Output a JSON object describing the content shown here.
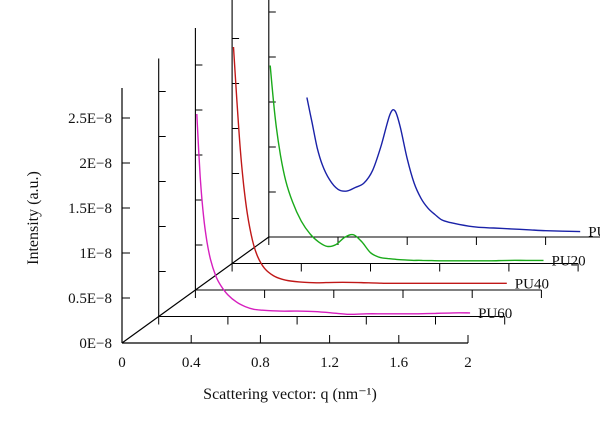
{
  "chart_data": {
    "type": "line",
    "xlabel": "Scattering vector: q (nm⁻¹)",
    "ylabel": "Intensity (a.u.)",
    "x_ticks": [
      "0",
      "0.4",
      "0.8",
      "1.2",
      "1.6",
      "2"
    ],
    "x_tick_values": [
      0,
      0.4,
      0.8,
      1.2,
      1.6,
      2
    ],
    "y_ticks": [
      "0E−8",
      "0.5E−8",
      "1E−8",
      "1.5E−8",
      "2E−8",
      "2.5E−8"
    ],
    "y_tick_values": [
      0,
      0.5,
      1,
      1.5,
      2,
      2.5
    ],
    "xlim": [
      0,
      2
    ],
    "ylim": [
      0,
      2.5
    ],
    "grid": false,
    "legend": "labels at right end of each series",
    "layout": "3D waterfall, each series offset along a depth axis",
    "series": [
      {
        "name": "PU60",
        "color": "#d61fbe",
        "q": [
          0.22,
          0.24,
          0.26,
          0.28,
          0.3,
          0.33,
          0.36,
          0.4,
          0.45,
          0.5,
          0.55,
          0.6,
          0.7,
          0.8,
          0.9,
          1.0,
          1.1,
          1.2,
          1.3,
          1.4,
          1.5,
          1.6,
          1.7,
          1.8
        ],
        "intensity": [
          2.25,
          1.55,
          1.1,
          0.82,
          0.63,
          0.45,
          0.34,
          0.24,
          0.16,
          0.11,
          0.08,
          0.07,
          0.06,
          0.06,
          0.055,
          0.04,
          0.025,
          0.03,
          0.03,
          0.03,
          0.03,
          0.035,
          0.04,
          0.04
        ]
      },
      {
        "name": "PU40",
        "color": "#c01818",
        "q": [
          0.22,
          0.24,
          0.26,
          0.28,
          0.3,
          0.33,
          0.36,
          0.4,
          0.45,
          0.5,
          0.55,
          0.6,
          0.7,
          0.8,
          0.9,
          1.0,
          1.1,
          1.2,
          1.3,
          1.4,
          1.5,
          1.6,
          1.7,
          1.8
        ],
        "intensity": [
          2.7,
          2.1,
          1.55,
          1.15,
          0.85,
          0.55,
          0.37,
          0.24,
          0.16,
          0.12,
          0.1,
          0.09,
          0.08,
          0.085,
          0.085,
          0.08,
          0.075,
          0.075,
          0.075,
          0.075,
          0.075,
          0.075,
          0.075,
          0.075
        ]
      },
      {
        "name": "PU20",
        "color": "#1aaa1a",
        "q": [
          0.22,
          0.25,
          0.28,
          0.31,
          0.35,
          0.4,
          0.45,
          0.5,
          0.55,
          0.6,
          0.65,
          0.7,
          0.75,
          0.8,
          0.85,
          0.9,
          0.95,
          1.0,
          1.05,
          1.1,
          1.2,
          1.3,
          1.4,
          1.5,
          1.6,
          1.7,
          1.8
        ],
        "intensity": [
          2.2,
          1.6,
          1.2,
          0.92,
          0.68,
          0.47,
          0.33,
          0.24,
          0.19,
          0.21,
          0.29,
          0.32,
          0.24,
          0.12,
          0.07,
          0.055,
          0.045,
          0.04,
          0.035,
          0.035,
          0.03,
          0.03,
          0.03,
          0.03,
          0.035,
          0.035,
          0.035
        ]
      },
      {
        "name": "PU",
        "color": "#1a22a8",
        "q": [
          0.22,
          0.25,
          0.28,
          0.31,
          0.35,
          0.4,
          0.45,
          0.5,
          0.55,
          0.6,
          0.65,
          0.7,
          0.73,
          0.76,
          0.8,
          0.84,
          0.88,
          0.92,
          0.96,
          1.0,
          1.05,
          1.1,
          1.2,
          1.3,
          1.4,
          1.5,
          1.6,
          1.7,
          1.8
        ],
        "intensity": [
          1.55,
          1.27,
          0.99,
          0.8,
          0.64,
          0.53,
          0.51,
          0.55,
          0.6,
          0.74,
          1.02,
          1.36,
          1.4,
          1.22,
          0.87,
          0.6,
          0.43,
          0.32,
          0.25,
          0.19,
          0.16,
          0.14,
          0.11,
          0.1,
          0.09,
          0.08,
          0.07,
          0.065,
          0.06
        ]
      }
    ]
  }
}
